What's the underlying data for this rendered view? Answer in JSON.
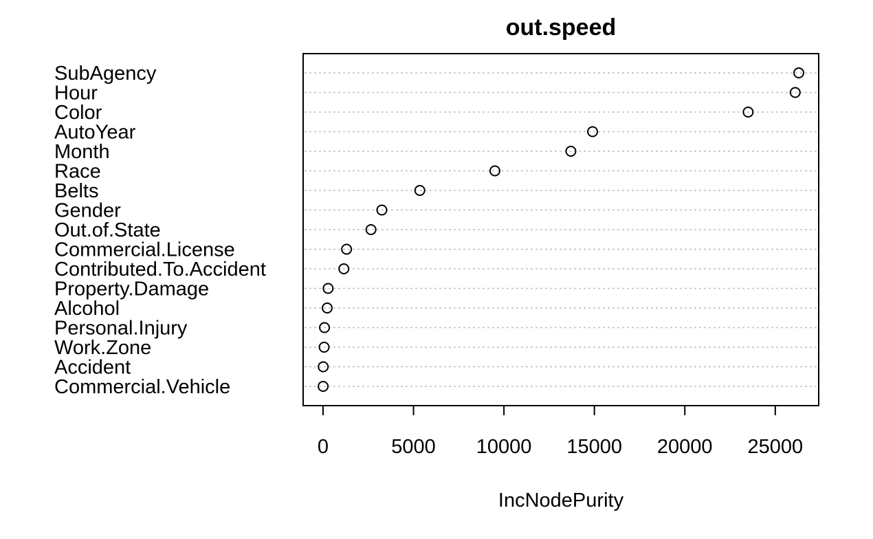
{
  "chart_data": {
    "type": "scatter",
    "title": "out.speed",
    "xlabel": "IncNodePurity",
    "ylabel": "",
    "categories": [
      "SubAgency",
      "Hour",
      "Color",
      "AutoYear",
      "Month",
      "Race",
      "Belts",
      "Gender",
      "Out.of.State",
      "Commercial.License",
      "Contributed.To.Accident",
      "Property.Damage",
      "Alcohol",
      "Personal.Injury",
      "Work.Zone",
      "Accident",
      "Commercial.Vehicle"
    ],
    "values": [
      26300,
      26100,
      23500,
      14900,
      13700,
      9500,
      5350,
      3250,
      2650,
      1300,
      1150,
      280,
      230,
      80,
      60,
      10,
      5
    ],
    "xlim": [
      -1100,
      27400
    ],
    "xticks": [
      0,
      5000,
      10000,
      15000,
      20000,
      25000
    ],
    "grid": "horizontal dotted",
    "legend": "none",
    "colors": {
      "point": "#000000",
      "grid": "#bebebe",
      "frame": "#000000"
    }
  }
}
